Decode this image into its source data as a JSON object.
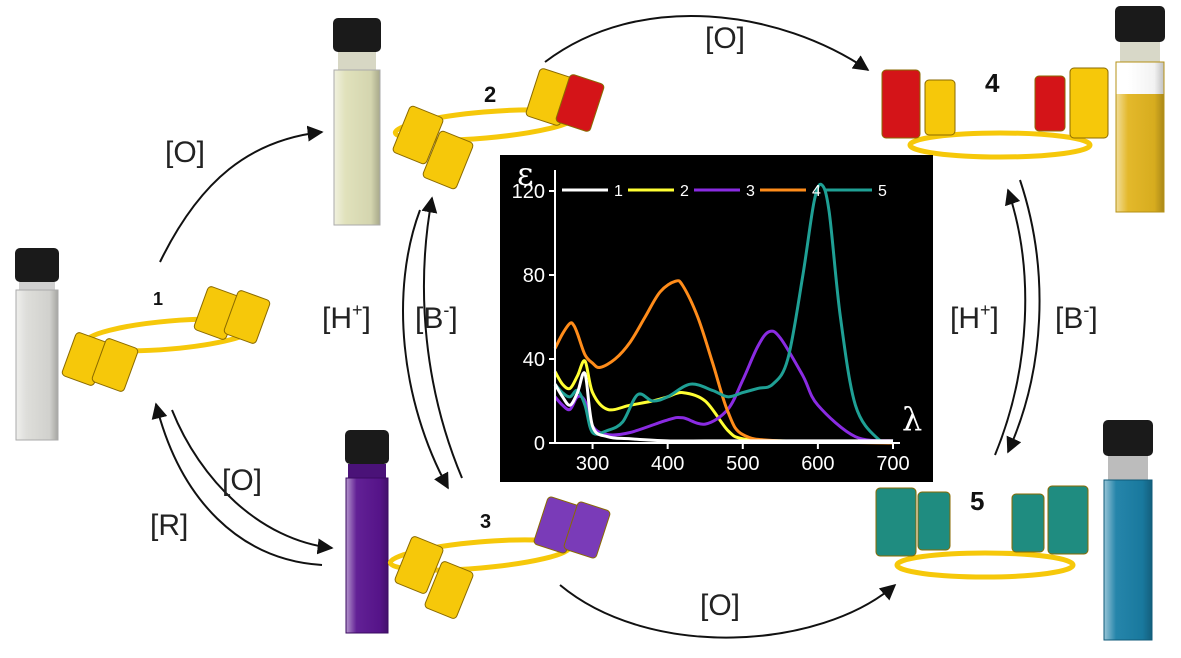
{
  "labels": {
    "ox_1_2": "[O]",
    "ox_2_4": "[O]",
    "ox_1_3": "[O]",
    "red_3_1": "[R]",
    "ox_3_5": "[O]",
    "acid_left": "[H+]",
    "base_left": "[B-]",
    "acid_right": "[H+]",
    "base_right": "[B-]"
  },
  "compounds": [
    {
      "id": "1",
      "label": "1",
      "vial_color": "#dcdcd8",
      "block_colors": [
        "#f6c80a",
        "#f6c80a",
        "#f6c80a",
        "#f6c80a"
      ]
    },
    {
      "id": "2",
      "label": "2",
      "vial_color": "#dfe0b8",
      "block_colors": [
        "#f6c80a",
        "#f6c80a",
        "#f6c80a",
        "#d41418"
      ]
    },
    {
      "id": "3",
      "label": "3",
      "vial_color": "#5a1590",
      "block_colors": [
        "#f6c80a",
        "#f6c80a",
        "#7a3bb8",
        "#7a3bb8"
      ]
    },
    {
      "id": "4",
      "label": "4",
      "vial_color": "#e2b520",
      "block_colors": [
        "#d41418",
        "#f6c80a",
        "#d41418",
        "#f6c80a"
      ]
    },
    {
      "id": "5",
      "label": "5",
      "vial_color": "#1a7fa6",
      "block_colors": [
        "#1f8c80",
        "#1f8c80",
        "#1f8c80",
        "#1f8c80"
      ]
    }
  ],
  "chart_data": {
    "type": "line",
    "xlabel": "λ",
    "ylabel": "ε",
    "xlim": [
      250,
      700
    ],
    "ylim": [
      0,
      130
    ],
    "xticks": [
      300,
      400,
      500,
      600,
      700
    ],
    "yticks": [
      0,
      40,
      80,
      120
    ],
    "background": "#000000",
    "legend_position": "top",
    "series": [
      {
        "name": "1",
        "color": "#ffffff",
        "x": [
          250,
          260,
          270,
          280,
          290,
          300,
          320,
          350,
          400,
          450,
          500,
          600,
          700
        ],
        "y": [
          28,
          22,
          18,
          24,
          33,
          8,
          3,
          2,
          1,
          1,
          1,
          1,
          1
        ]
      },
      {
        "name": "2",
        "color": "#ffff33",
        "x": [
          250,
          260,
          270,
          280,
          290,
          300,
          320,
          350,
          380,
          400,
          420,
          450,
          480,
          500,
          550,
          700
        ],
        "y": [
          34,
          28,
          26,
          32,
          39,
          24,
          16,
          18,
          20,
          22,
          24,
          20,
          6,
          2,
          1,
          1
        ]
      },
      {
        "name": "3",
        "color": "#8a2be2",
        "x": [
          250,
          260,
          270,
          280,
          290,
          300,
          320,
          350,
          400,
          420,
          450,
          480,
          500,
          520,
          535,
          550,
          580,
          600,
          650,
          700
        ],
        "y": [
          22,
          18,
          16,
          22,
          20,
          8,
          4,
          5,
          11,
          12,
          9,
          16,
          30,
          46,
          53,
          50,
          32,
          18,
          3,
          1
        ]
      },
      {
        "name": "4",
        "color": "#ff8c1a",
        "x": [
          250,
          260,
          270,
          275,
          280,
          290,
          300,
          310,
          330,
          350,
          370,
          390,
          410,
          420,
          440,
          460,
          480,
          500,
          550,
          700
        ],
        "y": [
          45,
          52,
          57,
          56,
          52,
          42,
          38,
          36,
          40,
          48,
          60,
          72,
          77,
          75,
          60,
          38,
          15,
          4,
          1,
          0
        ]
      },
      {
        "name": "5",
        "color": "#1fa095",
        "x": [
          250,
          260,
          270,
          280,
          290,
          300,
          320,
          340,
          360,
          380,
          400,
          430,
          460,
          480,
          500,
          520,
          540,
          560,
          580,
          595,
          605,
          615,
          630,
          650,
          680,
          700
        ],
        "y": [
          28,
          24,
          22,
          25,
          18,
          5,
          6,
          10,
          23,
          20,
          22,
          28,
          25,
          22,
          24,
          26,
          28,
          40,
          80,
          115,
          123,
          110,
          60,
          18,
          2,
          1
        ]
      }
    ]
  }
}
